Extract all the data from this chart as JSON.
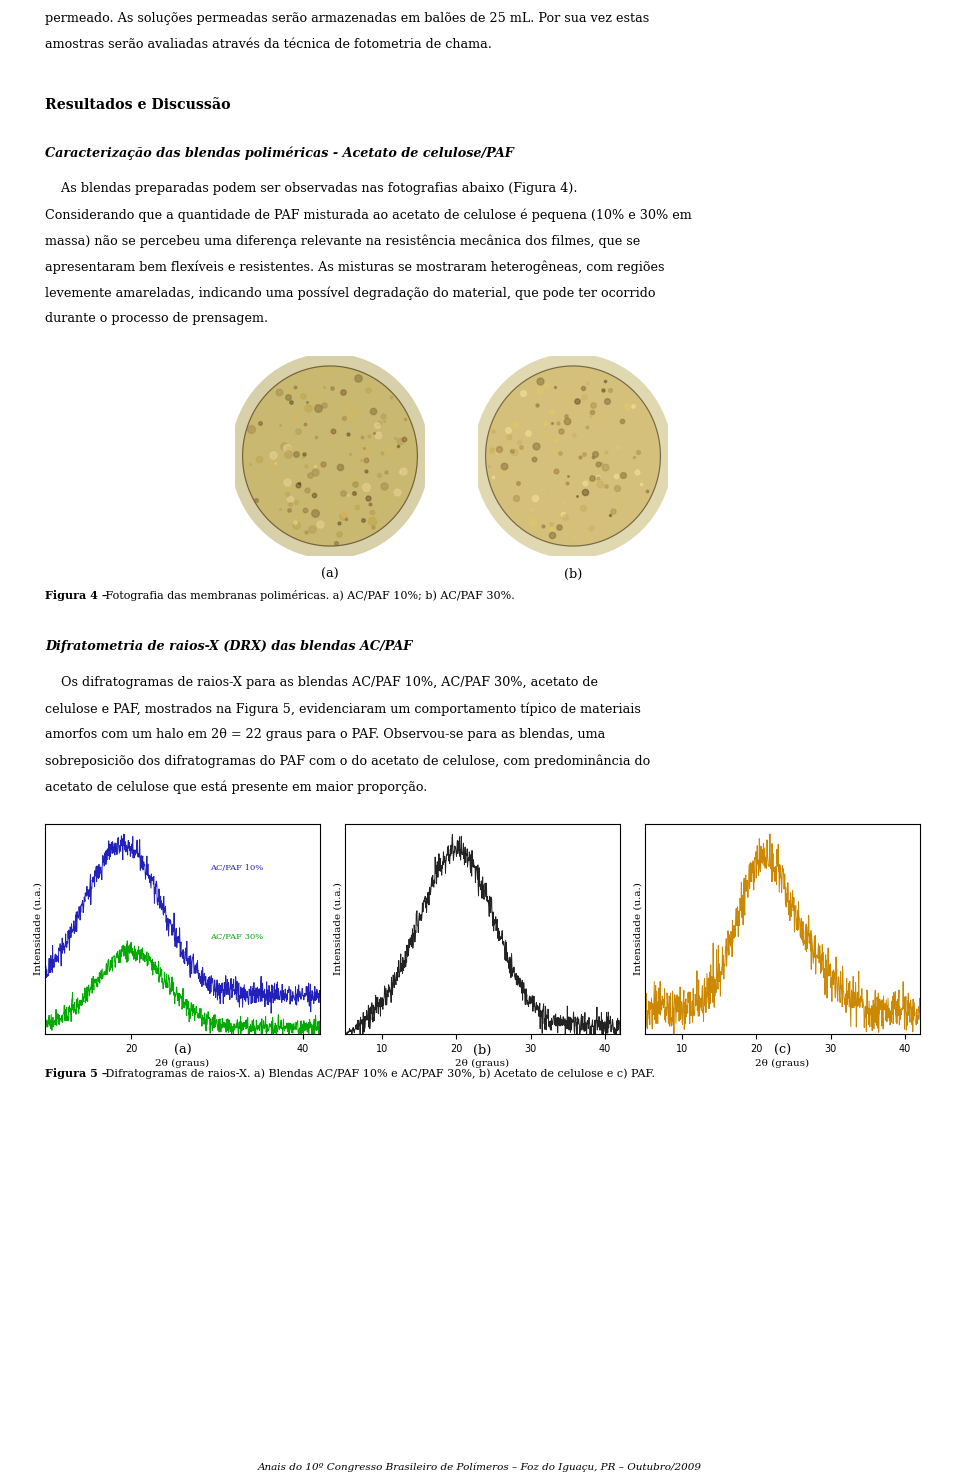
{
  "background_color": "#ffffff",
  "page_width": 9.6,
  "page_height": 14.76,
  "paragraph1": "permeado. As soluções permeadas serão armazenadas em balões de 25 mL. Por sua vez estas",
  "paragraph1b": "amostras serão avaliadas através da técnica de fotometria de chama.",
  "section_title": "Resultados e Discussão",
  "subsection_title": "Caracterização das blendas poliméricas - Acetato de celulose/PAF",
  "body_text": [
    "    As blendas preparadas podem ser observadas nas fotografias abaixo (Figura 4).",
    "Considerando que a quantidade de PAF misturada ao acetato de celulose é pequena (10% e 30% em",
    "massa) não se percebeu uma diferença relevante na resistência mecânica dos filmes, que se",
    "apresentaram bem flexíveis e resistentes. As misturas se mostraram heterogêneas, com regiões",
    "levemente amareladas, indicando uma possível degradação do material, que pode ter ocorrido",
    "durante o processo de prensagem."
  ],
  "fig4_caption_a": "(a)",
  "fig4_caption_b": "(b)",
  "fig4_bold": "Figura 4 –",
  "fig4_rest": " Fotografia das membranas poliméricas. a) AC/PAF 10%; b) AC/PAF 30%.",
  "section2_title": "Difratometria de raios-X (DRX) das blendas AC/PAF",
  "body_text2": [
    "    Os difratogramas de raios-X para as blendas AC/PAF 10%, AC/PAF 30%, acetato de",
    "celulose e PAF, mostrados na Figura 5, evidenciaram um comportamento típico de materiais",
    "amorfos com um halo em 2θ = 22 graus para o PAF. Observou-se para as blendas, uma",
    "sobreposiciõo dos difratogramas do PAF com o do acetato de celulose, com predominância do",
    "acetato de celulose que está presente em maior proporção."
  ],
  "fig5_caption_a": "(a)",
  "fig5_caption_b": "(b)",
  "fig5_caption_c": "(c)",
  "fig5_bold": "Figura 5 –",
  "fig5_rest": " Difratogramas de raios-X. a) Blendas AC/PAF 10% e AC/PAF 30%, b) Acetato de celulose e c) PAF.",
  "footer": "Anais do 10º Congresso Brasileiro de Polímeros – Foz do Iguaçu, PR – Outubro/2009",
  "plot_a_xlabel": "2θ (graus)",
  "plot_a_ylabel": "Intensidade (u.a.)",
  "plot_a_label_blue": "AC/PAF 10%",
  "plot_a_label_green": "AC/PAF 30%",
  "plot_a_color_blue": "#2222bb",
  "plot_a_color_green": "#00aa00",
  "plot_b_xlabel": "2θ (graus)",
  "plot_b_ylabel": "Intensidade (u.a.)",
  "plot_b_color": "#222222",
  "plot_c_xlabel": "2θ (graus)",
  "plot_c_ylabel": "Intensidade (u.a.)",
  "plot_c_color": "#cc8800"
}
